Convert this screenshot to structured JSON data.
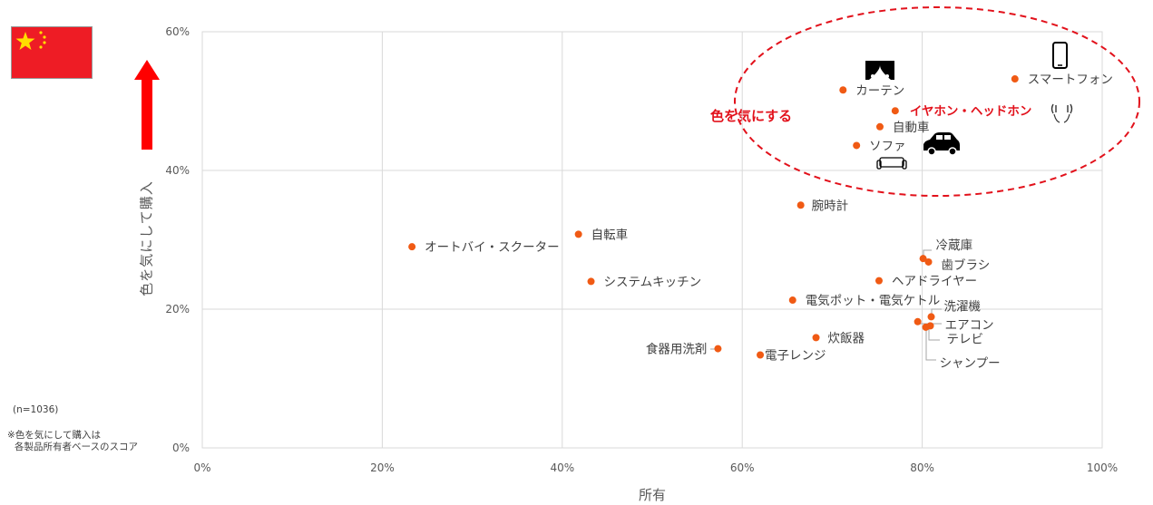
{
  "chart_data": {
    "type": "scatter",
    "xlabel": "所有",
    "ylabel": "色を気にして購入",
    "xlim": [
      0,
      100
    ],
    "ylim": [
      0,
      60
    ],
    "x_ticks": [
      "0%",
      "20%",
      "40%",
      "60%",
      "80%",
      "100%"
    ],
    "y_ticks": [
      "0%",
      "20%",
      "40%",
      "60%"
    ],
    "grid": true,
    "point_color": "#f05a14",
    "points": [
      {
        "label": "スマートフォン",
        "x": 90.3,
        "y": 53.2
      },
      {
        "label": "カーテン",
        "x": 71.2,
        "y": 51.6
      },
      {
        "label": "イヤホン・ヘッドホン",
        "x": 77.0,
        "y": 48.6,
        "highlight": true
      },
      {
        "label": "自動車",
        "x": 75.3,
        "y": 46.3
      },
      {
        "label": "ソファ",
        "x": 72.7,
        "y": 43.6
      },
      {
        "label": "腕時計",
        "x": 66.5,
        "y": 35.0
      },
      {
        "label": "オートバイ・スクーター",
        "x": 23.3,
        "y": 29.0
      },
      {
        "label": "自転車",
        "x": 41.8,
        "y": 30.8
      },
      {
        "label": "冷蔵庫",
        "x": 80.1,
        "y": 27.3
      },
      {
        "label": "歯ブラシ",
        "x": 80.7,
        "y": 26.8
      },
      {
        "label": "システムキッチン",
        "x": 43.2,
        "y": 24.0
      },
      {
        "label": "ヘアドライヤー",
        "x": 75.2,
        "y": 24.1
      },
      {
        "label": "電気ポット・電気ケトル",
        "x": 65.6,
        "y": 21.3
      },
      {
        "label": "洗濯機",
        "x": 81.0,
        "y": 18.9
      },
      {
        "label": "エアコン",
        "x": 79.5,
        "y": 18.2
      },
      {
        "label": "テレビ",
        "x": 80.9,
        "y": 17.6
      },
      {
        "label": "シャンプー",
        "x": 80.4,
        "y": 17.4
      },
      {
        "label": "炊飯器",
        "x": 68.2,
        "y": 15.9
      },
      {
        "label": "食器用洗剤",
        "x": 57.3,
        "y": 14.3
      },
      {
        "label": "電子レンジ",
        "x": 62.0,
        "y": 13.4
      }
    ],
    "annotation": "色を気にする",
    "highlight_color": "#e2111b"
  },
  "notes": {
    "sample": "(n=1036)",
    "line1": "※色を気にして購入は",
    "line2": "各製品所有者ベースのスコア"
  },
  "icons": [
    "china-flag-icon",
    "up-arrow-icon",
    "smartphone-icon",
    "curtain-icon",
    "earphones-icon",
    "car-icon",
    "sofa-icon"
  ]
}
